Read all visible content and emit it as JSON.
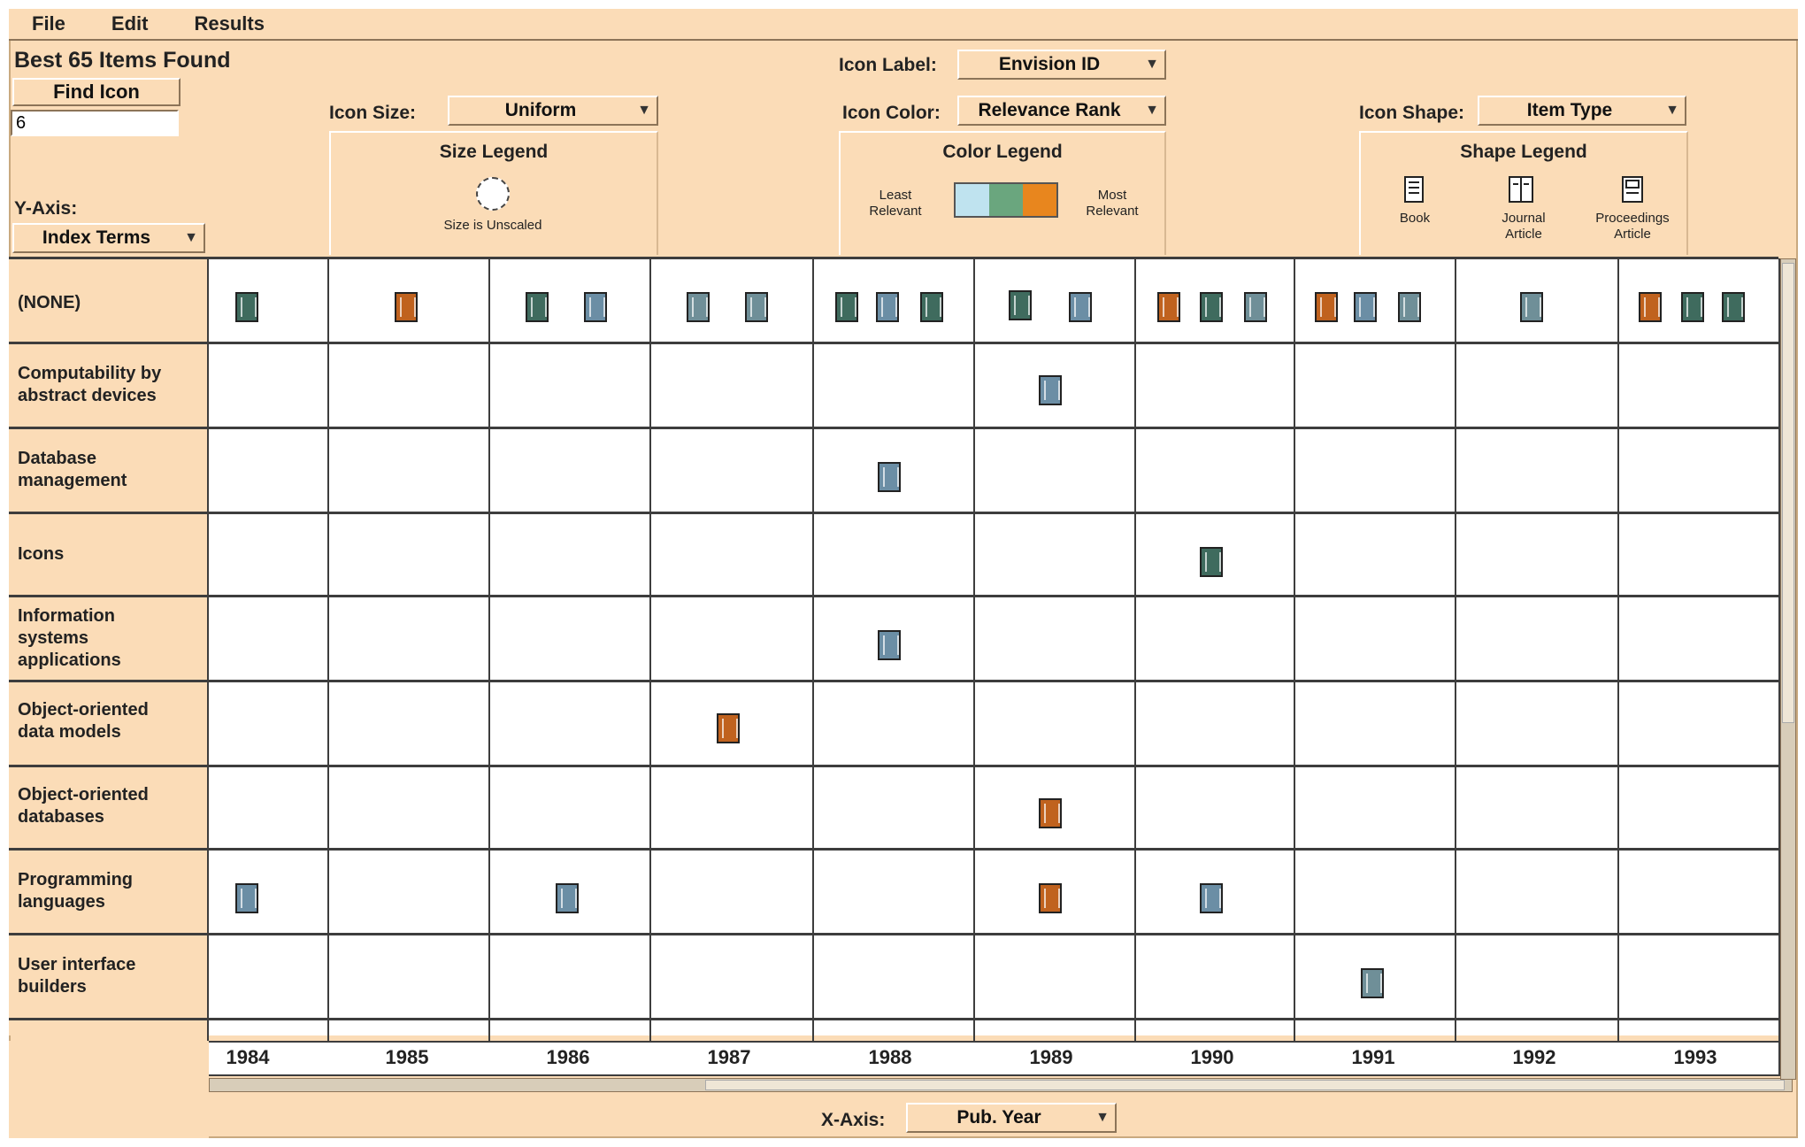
{
  "menu": [
    "File",
    "Edit",
    "Results"
  ],
  "found_title": "Best 65 Items Found",
  "find_button": "Find Icon",
  "find_input_value": "6",
  "y_axis": {
    "label": "Y-Axis:",
    "value": "Index Terms"
  },
  "icon_size": {
    "label": "Icon Size:",
    "value": "Uniform",
    "legend_title": "Size Legend",
    "legend_note": "Size is Unscaled"
  },
  "icon_label": {
    "label": "Icon Label:",
    "value": "Envision ID"
  },
  "icon_color": {
    "label": "Icon Color:",
    "value": "Relevance Rank",
    "legend_title": "Color Legend",
    "least": "Least Relevant",
    "most": "Most Relevant"
  },
  "icon_shape": {
    "label": "Icon Shape:",
    "value": "Item Type",
    "legend_title": "Shape Legend",
    "shapes": [
      "Book",
      "Journal Article",
      "Proceedings Article"
    ]
  },
  "colors": {
    "least": "#bfe3ef",
    "mid": "#6aa67e",
    "most": "#e8861e",
    "panel": "#fbdcb7"
  },
  "rows": [
    "(NONE)",
    "Computability by abstract devices",
    "Database management",
    "Icons",
    "Information systems applications",
    "Object-oriented data models",
    "Object-oriented databases",
    "Programming languages",
    "User interface builders"
  ],
  "years": [
    "1984",
    "1985",
    "1986",
    "1987",
    "1988",
    "1989",
    "1990",
    "1991",
    "1992",
    "1993"
  ],
  "x_axis": {
    "label": "X-Axis:",
    "value": "Pub. Year"
  }
}
